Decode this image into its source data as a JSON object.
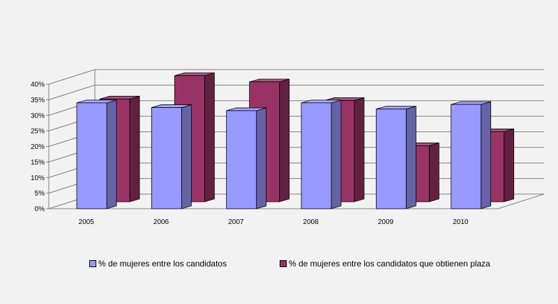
{
  "chart_data": {
    "type": "bar",
    "categories": [
      "2005",
      "2006",
      "2007",
      "2008",
      "2009",
      "2010"
    ],
    "series": [
      {
        "name": "% de mujeres entre los candidatos",
        "values": [
          34,
          32.5,
          31.5,
          34,
          32,
          33.5
        ],
        "color": "#9999ff"
      },
      {
        "name": "% de mujeres entre los candidatos que obtienen plaza",
        "values": [
          33,
          40.5,
          38.5,
          32.5,
          18,
          22.5
        ],
        "color": "#993366"
      }
    ],
    "yticks": [
      "0%",
      "5%",
      "10%",
      "15%",
      "20%",
      "25%",
      "30%",
      "35%",
      "40%"
    ],
    "ylim": [
      0,
      40
    ],
    "grid": true,
    "legend_position": "bottom",
    "style": "3d-clustered"
  }
}
